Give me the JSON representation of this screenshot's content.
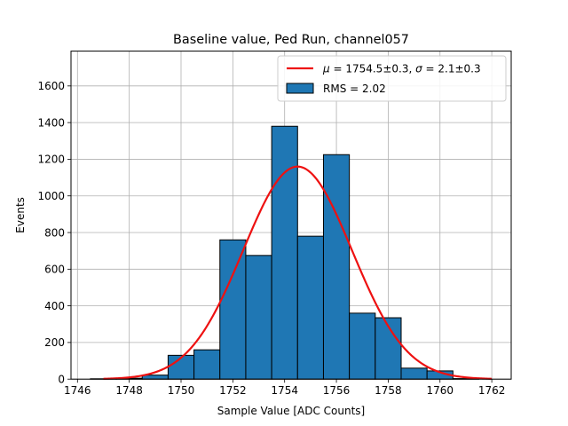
{
  "chart_data": {
    "type": "bar",
    "title": "Baseline value, Ped Run, channel057",
    "xlabel": "Sample Value [ADC Counts]",
    "ylabel": "Events",
    "xlim": [
      1745.75,
      1762.75
    ],
    "ylim": [
      0,
      1790
    ],
    "xticks": [
      1746,
      1748,
      1750,
      1752,
      1754,
      1756,
      1758,
      1760,
      1762
    ],
    "yticks": [
      0,
      200,
      400,
      600,
      800,
      1000,
      1200,
      1400,
      1600
    ],
    "grid": true,
    "legend_position": "top-right",
    "histogram": {
      "name": "RMS = 2.02",
      "bin_edges": [
        1746.5,
        1747.5,
        1748.5,
        1749.5,
        1750.5,
        1751.5,
        1752.5,
        1753.5,
        1754.5,
        1755.5,
        1756.5,
        1757.5,
        1758.5,
        1759.5,
        1760.5,
        1761.5
      ],
      "values": [
        2,
        5,
        22,
        130,
        160,
        760,
        675,
        1380,
        780,
        1225,
        360,
        335,
        60,
        45,
        3
      ],
      "color": "#1f77b4",
      "edgecolor": "#000000"
    },
    "fit": {
      "name_mu_value": "1754.5±0.3",
      "name_sigma_value": "2.1±0.3",
      "mu": 1754.5,
      "sigma": 2.1,
      "amplitude": 1160,
      "x_range": [
        1747,
        1762
      ],
      "color": "#ee1111"
    }
  }
}
